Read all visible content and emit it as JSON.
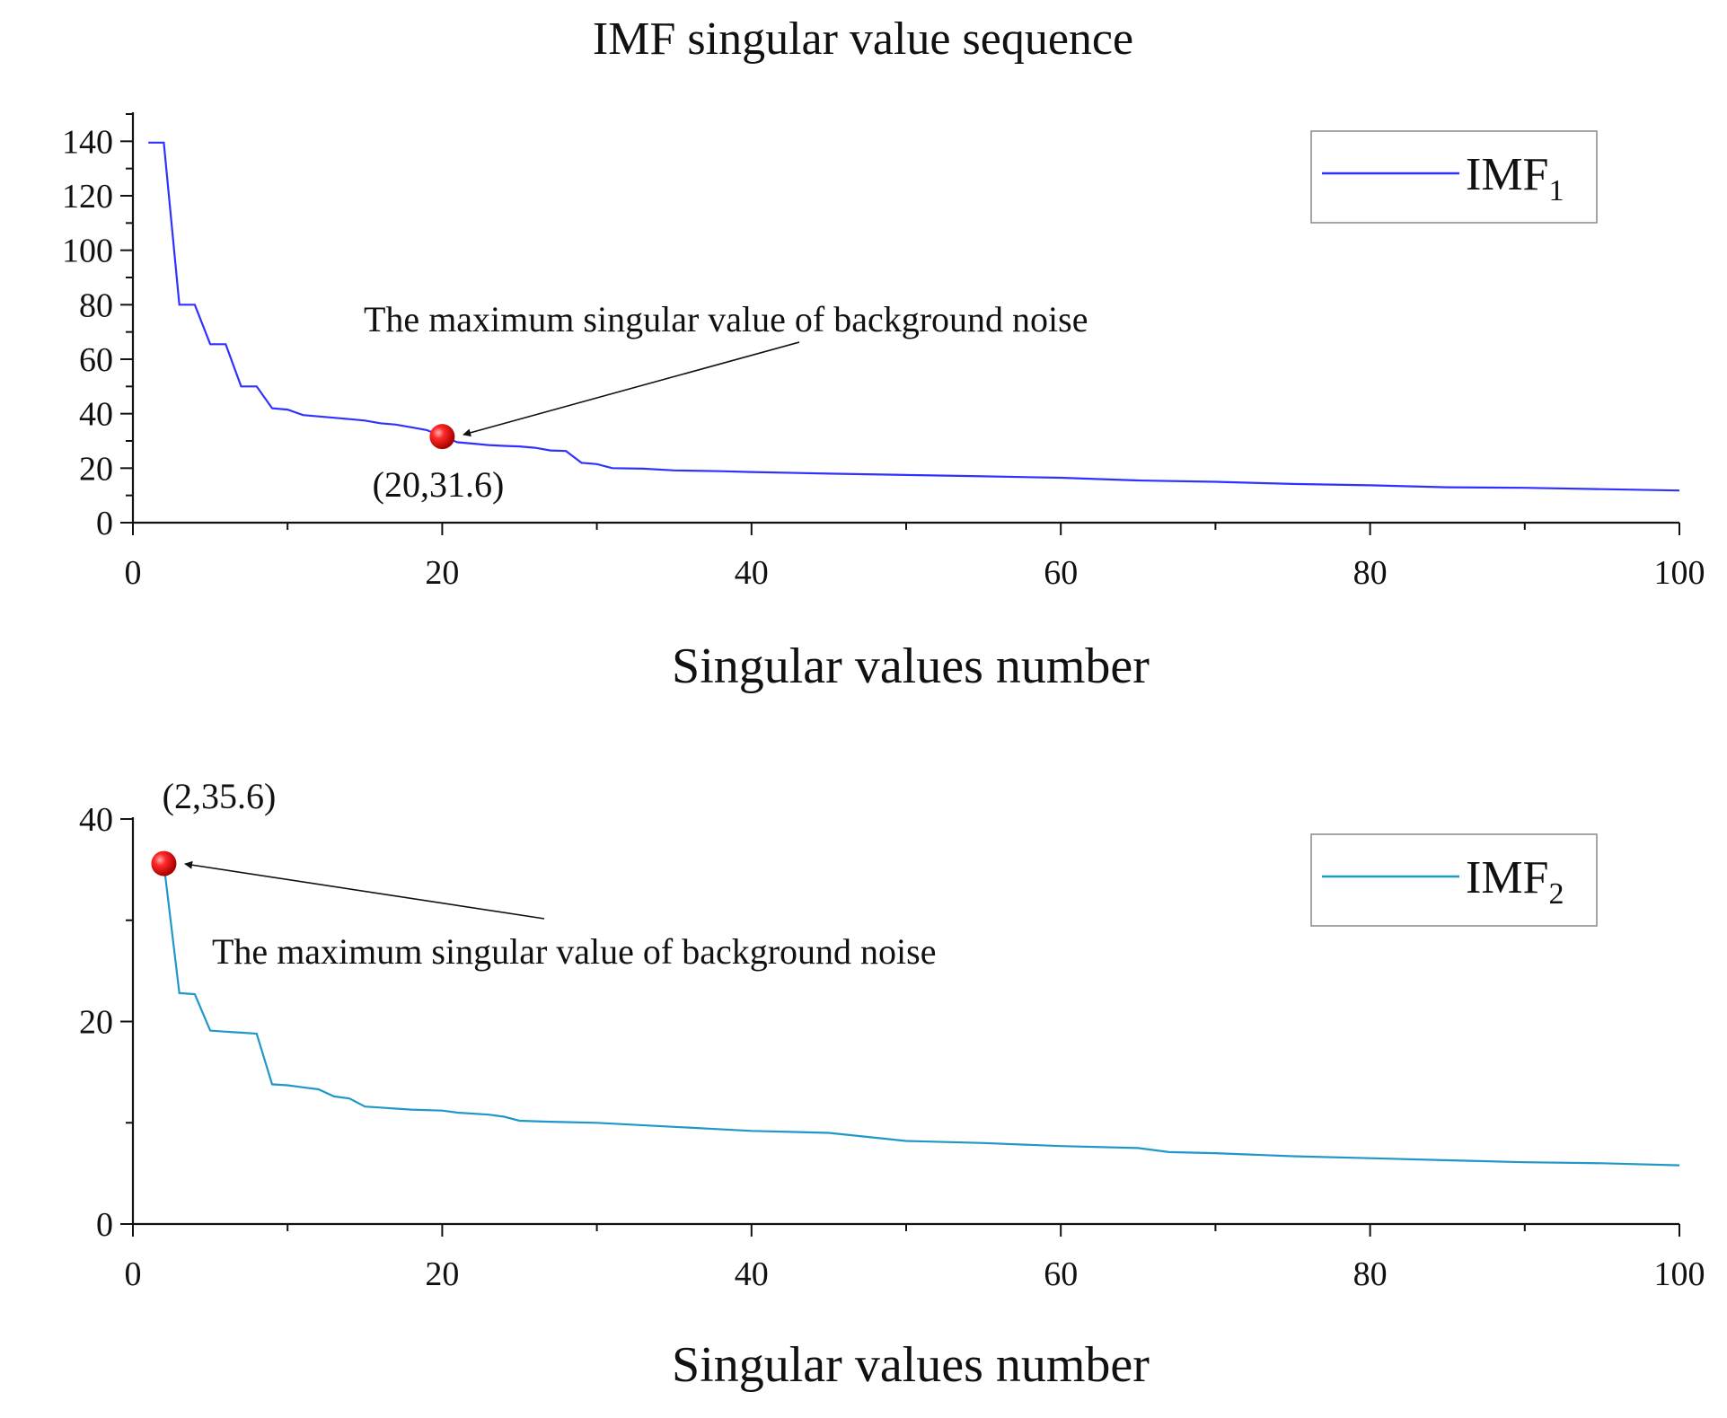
{
  "figure_title": "IMF singular value sequence",
  "colors": {
    "imf1": "#3030ff",
    "imf2": "#1f97c9",
    "marker": "#ee1111",
    "axis": "#111111",
    "arrow": "#111111"
  },
  "chart_data": [
    {
      "type": "line",
      "title": "IMF singular value sequence",
      "xlabel": "Singular values number",
      "ylabel": "",
      "xlim": [
        0,
        100
      ],
      "ylim": [
        0,
        150
      ],
      "xticks": [
        0,
        20,
        40,
        60,
        80,
        100
      ],
      "yticks": [
        0,
        20,
        40,
        60,
        80,
        100,
        120,
        140
      ],
      "legend": {
        "label": "IMF",
        "subscript": "1",
        "position": "top-right"
      },
      "series": [
        {
          "name": "IMF1",
          "x": [
            1,
            2,
            3,
            4,
            5,
            6,
            7,
            8,
            9,
            10,
            11,
            12,
            13,
            14,
            15,
            16,
            17,
            18,
            19,
            20,
            21,
            22,
            23,
            24,
            25,
            26,
            27,
            28,
            29,
            30,
            31,
            33,
            35,
            38,
            40,
            45,
            50,
            55,
            60,
            65,
            70,
            75,
            80,
            85,
            90,
            95,
            100
          ],
          "values": [
            139.5,
            139.5,
            80,
            80,
            65.5,
            65.5,
            50,
            50,
            42,
            41.5,
            39.5,
            39,
            38.5,
            38,
            37.5,
            36.5,
            36,
            35,
            34,
            31.6,
            29.5,
            29,
            28.5,
            28.2,
            28,
            27.5,
            26.5,
            26.3,
            22,
            21.5,
            20,
            19.8,
            19.2,
            18.9,
            18.6,
            18,
            17.5,
            17,
            16.5,
            15.5,
            15,
            14.2,
            13.7,
            13,
            12.8,
            12.3,
            11.8
          ]
        }
      ],
      "annotations": [
        {
          "text": "The maximum singular value of background noise",
          "x": 20,
          "y": 31.6
        },
        {
          "text": "(20,31.6)",
          "x": 20,
          "y": 31.6
        }
      ],
      "highlight_point": {
        "x": 20,
        "y": 31.6
      }
    },
    {
      "type": "line",
      "title": "",
      "xlabel": "Singular values number",
      "ylabel": "",
      "xlim": [
        0,
        100
      ],
      "ylim": [
        0,
        40
      ],
      "xticks": [
        0,
        20,
        40,
        60,
        80,
        100
      ],
      "yticks": [
        0,
        20,
        40
      ],
      "legend": {
        "label": "IMF",
        "subscript": "2",
        "position": "top-right"
      },
      "series": [
        {
          "name": "IMF2",
          "x": [
            2,
            3,
            4,
            5,
            6,
            7,
            8,
            9,
            10,
            11,
            12,
            13,
            14,
            15,
            16,
            17,
            18,
            20,
            21,
            23,
            24,
            25,
            27,
            30,
            35,
            40,
            45,
            50,
            55,
            60,
            65,
            67,
            70,
            75,
            80,
            85,
            90,
            95,
            100
          ],
          "values": [
            35.6,
            22.8,
            22.7,
            19.1,
            19,
            18.9,
            18.8,
            13.8,
            13.7,
            13.5,
            13.3,
            12.6,
            12.4,
            11.6,
            11.5,
            11.4,
            11.3,
            11.2,
            11,
            10.8,
            10.6,
            10.2,
            10.1,
            10,
            9.6,
            9.2,
            9,
            8.2,
            8,
            7.7,
            7.5,
            7.1,
            7,
            6.7,
            6.5,
            6.3,
            6.1,
            6,
            5.8
          ]
        }
      ],
      "annotations": [
        {
          "text": "The maximum singular value of background noise",
          "x": 2,
          "y": 35.6
        },
        {
          "text": "(2,35.6)",
          "x": 2,
          "y": 35.6
        }
      ],
      "highlight_point": {
        "x": 2,
        "y": 35.6
      }
    }
  ]
}
